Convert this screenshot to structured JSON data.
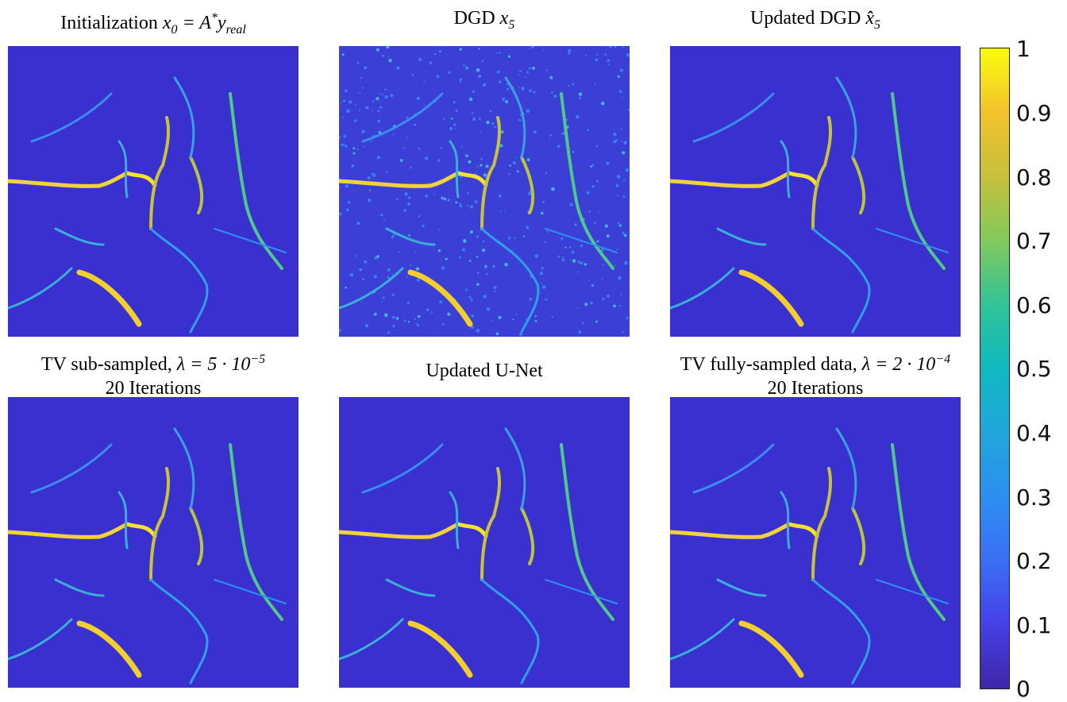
{
  "panels": [
    {
      "id": "p1",
      "title_text": "Initialization ",
      "title_math": "x",
      "title_sub": "0",
      "title_rest": " = A",
      "title_sup": "*",
      "title_tail": "y",
      "title_tail_sub": "real"
    },
    {
      "id": "p2",
      "title_text": "DGD ",
      "title_math": "x",
      "title_sub": "5"
    },
    {
      "id": "p3",
      "title_text": "Updated DGD ",
      "title_math": "x̂",
      "title_sub": "5"
    },
    {
      "id": "p4",
      "title_line1": "TV sub-sampled, ",
      "lambda_eq": "λ = 5 · 10",
      "lambda_sup": "−5",
      "title_line2": "20 Iterations"
    },
    {
      "id": "p5",
      "title_text": "Updated U-Net"
    },
    {
      "id": "p6",
      "title_line1": "TV fully-sampled data, ",
      "lambda_eq": "λ = 2 · 10",
      "lambda_sup": "−4",
      "title_line2": "20 Iterations"
    }
  ],
  "colorbar": {
    "ticks": [
      "1",
      "0.9",
      "0.8",
      "0.7",
      "0.6",
      "0.5",
      "0.4",
      "0.3",
      "0.2",
      "0.1",
      "0"
    ],
    "colormap": "parula"
  }
}
